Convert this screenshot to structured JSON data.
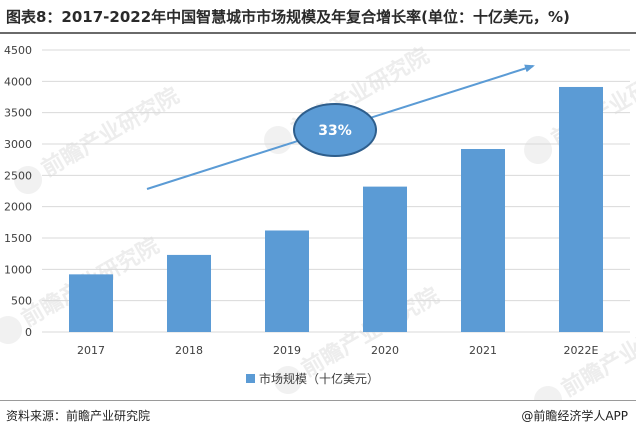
{
  "title": "图表8：2017-2022年中国智慧城市市场规模及年复合增长率(单位：十亿美元，%)",
  "chart_data": {
    "type": "bar",
    "categories": [
      "2017",
      "2018",
      "2019",
      "2020",
      "2021",
      "2022E"
    ],
    "series": [
      {
        "name": "市场规模（十亿美元）",
        "values": [
          920,
          1230,
          1620,
          2320,
          2920,
          3910
        ]
      }
    ],
    "ylim": [
      0,
      4500
    ],
    "yticks": [
      0,
      500,
      1000,
      1500,
      2000,
      2500,
      3000,
      3500,
      4000,
      4500
    ],
    "grid": true,
    "legend": "bottom-center",
    "annotation": {
      "label": "33%",
      "meaning": "年复合增长率"
    },
    "colors": {
      "bar": "#5b9bd5",
      "arrow": "#5b9bd5",
      "badge_fill": "#5b9bd5",
      "badge_stroke": "#2e5e8c",
      "grid": "#d9d9d9"
    }
  },
  "watermark": "前瞻产业研究院",
  "footer": {
    "source": "资料来源：前瞻产业研究院",
    "brand": "@前瞻经济学人APP"
  }
}
